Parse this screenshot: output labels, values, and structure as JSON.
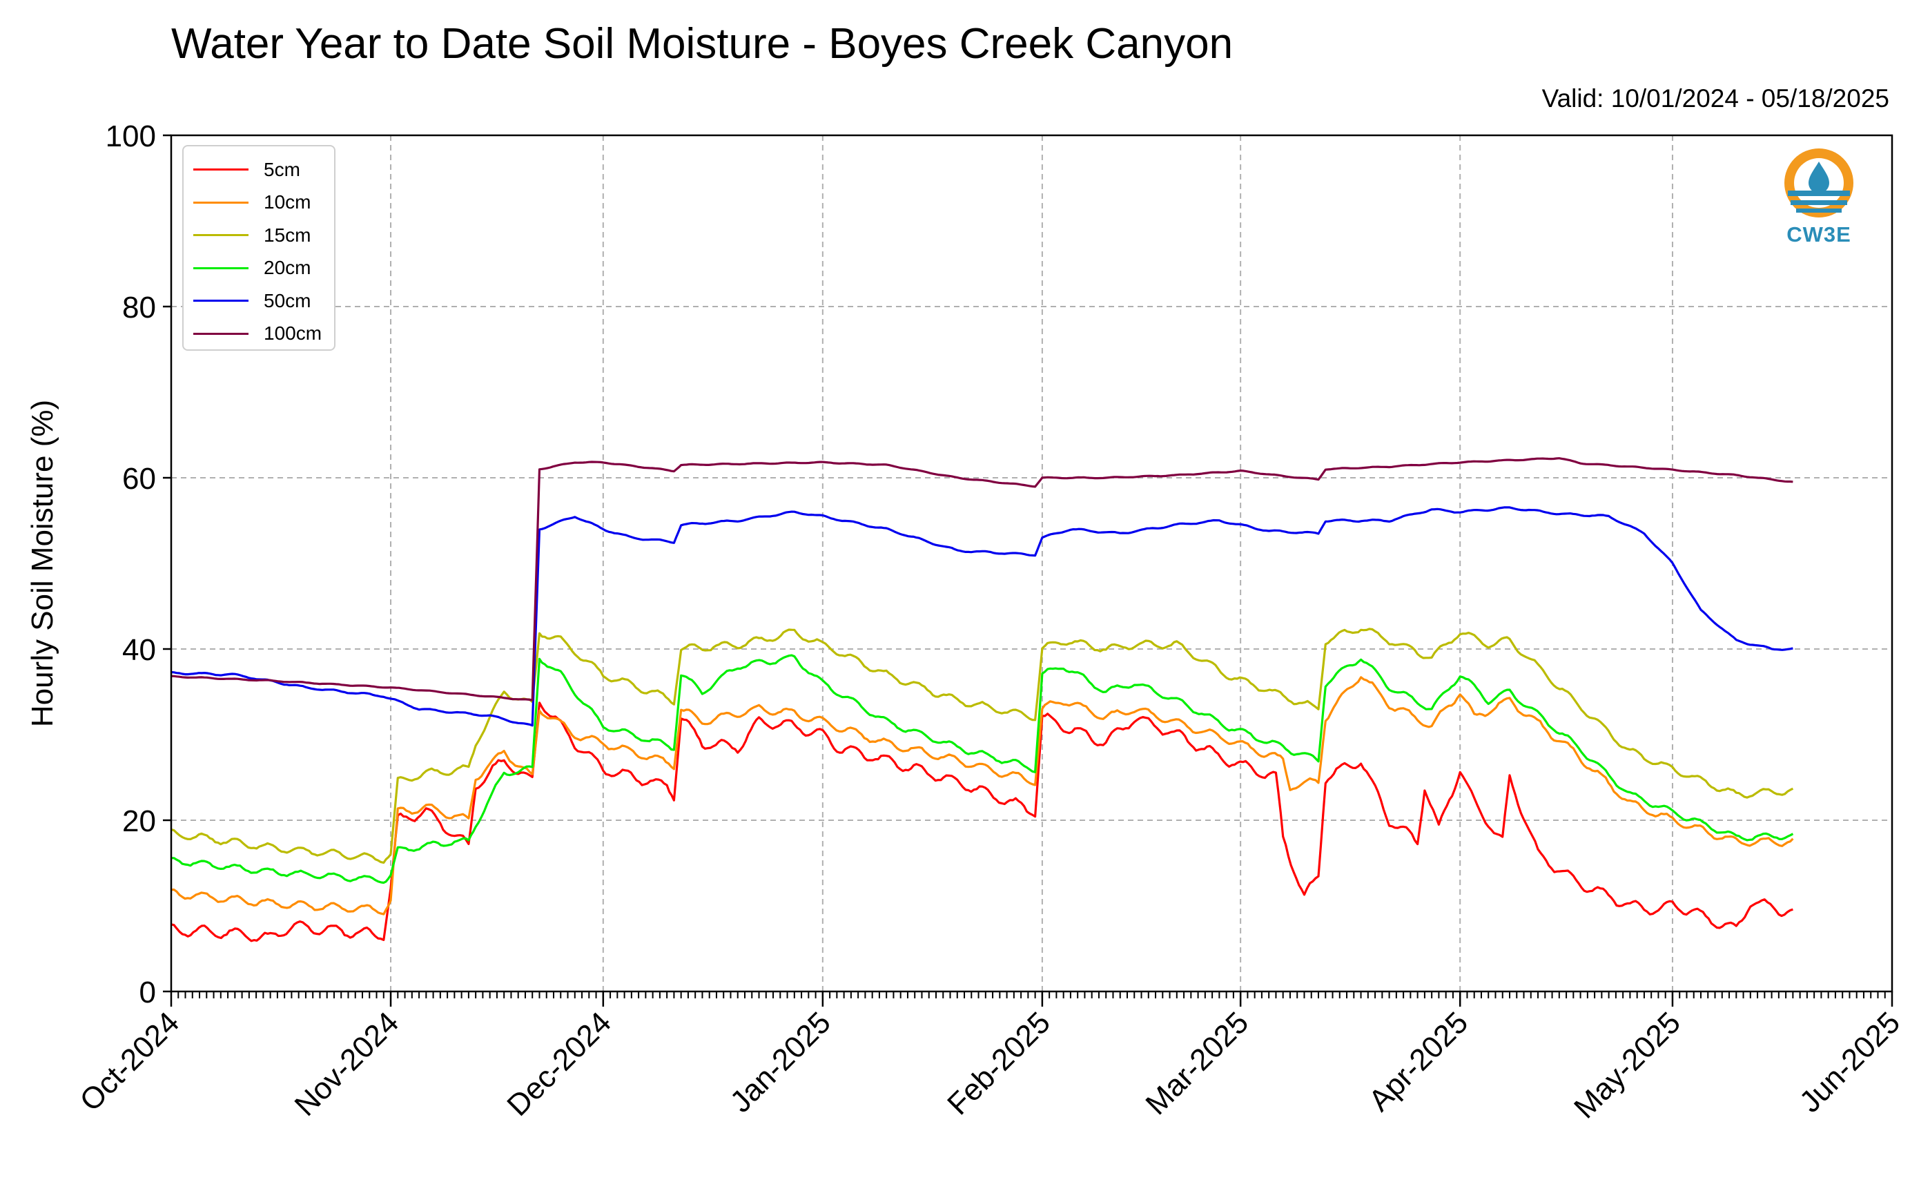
{
  "title": "Water Year to Date Soil Moisture - Boyes Creek Canyon",
  "valid": "Valid: 10/01/2024 - 05/18/2025",
  "logo": {
    "icon": "cw3e-droplet-logo",
    "text": "CW3E",
    "color": "#f39a1e",
    "accent": "#2a8db8"
  },
  "chart_data": {
    "type": "line",
    "ylabel": "Hourly Soil Moisture (%)",
    "xlabel": "",
    "ylim": [
      0,
      100
    ],
    "xlim": [
      "2024-10-01",
      "2025-06-01"
    ],
    "grid": true,
    "legend_position": "top-left",
    "yticks": [
      0,
      20,
      40,
      60,
      80,
      100
    ],
    "xticks": [
      {
        "date": "2024-10-01",
        "label": "Oct-2024"
      },
      {
        "date": "2024-11-01",
        "label": "Nov-2024"
      },
      {
        "date": "2024-12-01",
        "label": "Dec-2024"
      },
      {
        "date": "2025-01-01",
        "label": "Jan-2025"
      },
      {
        "date": "2025-02-01",
        "label": "Feb-2025"
      },
      {
        "date": "2025-03-01",
        "label": "Mar-2025"
      },
      {
        "date": "2025-04-01",
        "label": "Apr-2025"
      },
      {
        "date": "2025-05-01",
        "label": "May-2025"
      },
      {
        "date": "2025-06-01",
        "label": "Jun-2025"
      }
    ],
    "series": [
      {
        "name": "5cm",
        "color": "#ff0000",
        "points": [
          [
            "2024-10-01",
            7.2
          ],
          [
            "2024-10-10",
            6.8
          ],
          [
            "2024-10-15",
            6.2
          ],
          [
            "2024-10-18",
            7.6
          ],
          [
            "2024-10-31",
            6.6
          ],
          [
            "2024-11-01",
            12
          ],
          [
            "2024-11-02",
            20
          ],
          [
            "2024-11-06",
            21
          ],
          [
            "2024-11-12",
            17
          ],
          [
            "2024-11-13",
            24
          ],
          [
            "2024-11-17",
            27
          ],
          [
            "2024-11-21",
            24.5
          ],
          [
            "2024-11-22",
            34
          ],
          [
            "2024-11-25",
            31
          ],
          [
            "2024-11-27",
            29
          ],
          [
            "2024-12-01",
            26
          ],
          [
            "2024-12-10",
            24
          ],
          [
            "2024-12-11",
            23
          ],
          [
            "2024-12-12",
            32
          ],
          [
            "2024-12-15",
            29
          ],
          [
            "2024-12-20",
            28.5
          ],
          [
            "2024-12-23",
            31.5
          ],
          [
            "2024-12-28",
            31
          ],
          [
            "2025-01-01",
            30
          ],
          [
            "2025-01-03",
            28.5
          ],
          [
            "2025-01-10",
            27
          ],
          [
            "2025-01-20",
            24.5
          ],
          [
            "2025-01-31",
            21
          ],
          [
            "2025-02-01",
            32
          ],
          [
            "2025-02-04",
            31
          ],
          [
            "2025-02-10",
            29
          ],
          [
            "2025-02-14",
            32
          ],
          [
            "2025-02-20",
            30
          ],
          [
            "2025-02-27",
            27
          ],
          [
            "2025-03-06",
            25
          ],
          [
            "2025-03-07",
            18
          ],
          [
            "2025-03-10",
            11
          ],
          [
            "2025-03-12",
            13.5
          ],
          [
            "2025-03-13",
            25
          ],
          [
            "2025-03-18",
            27
          ],
          [
            "2025-03-22",
            20
          ],
          [
            "2025-03-26",
            17.5
          ],
          [
            "2025-03-27",
            24
          ],
          [
            "2025-03-29",
            19
          ],
          [
            "2025-04-01",
            26
          ],
          [
            "2025-04-03",
            22
          ],
          [
            "2025-04-07",
            17.5
          ],
          [
            "2025-04-08",
            25
          ],
          [
            "2025-04-12",
            16
          ],
          [
            "2025-04-17",
            13
          ],
          [
            "2025-04-25",
            10
          ],
          [
            "2025-04-29",
            9.5
          ],
          [
            "2025-05-01",
            10.2
          ],
          [
            "2025-05-10",
            7.2
          ],
          [
            "2025-05-12",
            10.5
          ],
          [
            "2025-05-18",
            9.2
          ]
        ]
      },
      {
        "name": "10cm",
        "color": "#ff8c00",
        "points": [
          [
            "2024-10-01",
            11.5
          ],
          [
            "2024-10-15",
            10.3
          ],
          [
            "2024-10-31",
            9.5
          ],
          [
            "2024-11-01",
            10.5
          ],
          [
            "2024-11-02",
            21
          ],
          [
            "2024-11-06",
            21.5
          ],
          [
            "2024-11-12",
            20
          ],
          [
            "2024-11-13",
            25
          ],
          [
            "2024-11-17",
            28
          ],
          [
            "2024-11-21",
            25
          ],
          [
            "2024-11-22",
            33
          ],
          [
            "2024-11-27",
            30
          ],
          [
            "2024-12-01",
            29
          ],
          [
            "2024-12-11",
            26.5
          ],
          [
            "2024-12-12",
            33
          ],
          [
            "2024-12-15",
            31.5
          ],
          [
            "2024-12-23",
            33
          ],
          [
            "2024-12-28",
            32.5
          ],
          [
            "2025-01-01",
            31.5
          ],
          [
            "2025-01-10",
            29
          ],
          [
            "2025-01-20",
            27
          ],
          [
            "2025-01-31",
            24.5
          ],
          [
            "2025-02-01",
            33
          ],
          [
            "2025-02-04",
            34
          ],
          [
            "2025-02-10",
            32
          ],
          [
            "2025-02-14",
            33
          ],
          [
            "2025-02-27",
            29.5
          ],
          [
            "2025-03-07",
            27
          ],
          [
            "2025-03-08",
            24
          ],
          [
            "2025-03-12",
            24.5
          ],
          [
            "2025-03-13",
            32
          ],
          [
            "2025-03-18",
            37
          ],
          [
            "2025-03-22",
            33.5
          ],
          [
            "2025-03-28",
            31
          ],
          [
            "2025-04-01",
            35
          ],
          [
            "2025-04-03",
            32
          ],
          [
            "2025-04-08",
            34
          ],
          [
            "2025-04-17",
            28
          ],
          [
            "2025-04-25",
            22
          ],
          [
            "2025-05-01",
            20
          ],
          [
            "2025-05-10",
            17.5
          ],
          [
            "2025-05-18",
            17.5
          ]
        ]
      },
      {
        "name": "15cm",
        "color": "#bbbb00",
        "points": [
          [
            "2024-10-01",
            18.5
          ],
          [
            "2024-10-15",
            16.8
          ],
          [
            "2024-10-31",
            15.5
          ],
          [
            "2024-11-01",
            16
          ],
          [
            "2024-11-02",
            24.5
          ],
          [
            "2024-11-06",
            25.5
          ],
          [
            "2024-11-12",
            26
          ],
          [
            "2024-11-13",
            29
          ],
          [
            "2024-11-17",
            35
          ],
          [
            "2024-11-21",
            33.5
          ],
          [
            "2024-11-22",
            42
          ],
          [
            "2024-11-25",
            41
          ],
          [
            "2024-12-01",
            37
          ],
          [
            "2024-12-11",
            34
          ],
          [
            "2024-12-12",
            40
          ],
          [
            "2024-12-20",
            40.5
          ],
          [
            "2024-12-23",
            41
          ],
          [
            "2024-12-28",
            42
          ],
          [
            "2025-01-01",
            40.5
          ],
          [
            "2025-01-10",
            37
          ],
          [
            "2025-01-20",
            34
          ],
          [
            "2025-01-31",
            32
          ],
          [
            "2025-02-01",
            40
          ],
          [
            "2025-02-04",
            41
          ],
          [
            "2025-02-10",
            40
          ],
          [
            "2025-02-14",
            40.5
          ],
          [
            "2025-02-20",
            40.5
          ],
          [
            "2025-02-27",
            37
          ],
          [
            "2025-03-07",
            34.5
          ],
          [
            "2025-03-12",
            33
          ],
          [
            "2025-03-13",
            41
          ],
          [
            "2025-03-18",
            42.5
          ],
          [
            "2025-03-22",
            41
          ],
          [
            "2025-03-28",
            39
          ],
          [
            "2025-04-01",
            42
          ],
          [
            "2025-04-05",
            40.5
          ],
          [
            "2025-04-08",
            41
          ],
          [
            "2025-04-17",
            34
          ],
          [
            "2025-04-25",
            28
          ],
          [
            "2025-05-01",
            26
          ],
          [
            "2025-05-10",
            23
          ],
          [
            "2025-05-18",
            23.5
          ]
        ]
      },
      {
        "name": "20cm",
        "color": "#00ee00",
        "points": [
          [
            "2024-10-01",
            15.3
          ],
          [
            "2024-10-15",
            14
          ],
          [
            "2024-10-31",
            13
          ],
          [
            "2024-11-01",
            13.5
          ],
          [
            "2024-11-02",
            16.5
          ],
          [
            "2024-11-10",
            17.5
          ],
          [
            "2024-11-12",
            17.5
          ],
          [
            "2024-11-13",
            19.5
          ],
          [
            "2024-11-17",
            25.5
          ],
          [
            "2024-11-21",
            26
          ],
          [
            "2024-11-22",
            39
          ],
          [
            "2024-11-25",
            37
          ],
          [
            "2024-12-01",
            31
          ],
          [
            "2024-12-11",
            28.5
          ],
          [
            "2024-12-12",
            37
          ],
          [
            "2024-12-15",
            35
          ],
          [
            "2024-12-20",
            38
          ],
          [
            "2024-12-28",
            39
          ],
          [
            "2025-01-01",
            36
          ],
          [
            "2025-01-10",
            31.5
          ],
          [
            "2025-01-20",
            28.5
          ],
          [
            "2025-01-31",
            26
          ],
          [
            "2025-02-01",
            37
          ],
          [
            "2025-02-04",
            38
          ],
          [
            "2025-02-10",
            35
          ],
          [
            "2025-02-14",
            36
          ],
          [
            "2025-02-20",
            34
          ],
          [
            "2025-02-27",
            31
          ],
          [
            "2025-03-07",
            28.5
          ],
          [
            "2025-03-12",
            27
          ],
          [
            "2025-03-13",
            36
          ],
          [
            "2025-03-18",
            39
          ],
          [
            "2025-03-22",
            35.5
          ],
          [
            "2025-03-28",
            33
          ],
          [
            "2025-04-01",
            37
          ],
          [
            "2025-04-05",
            34
          ],
          [
            "2025-04-08",
            35
          ],
          [
            "2025-04-17",
            29
          ],
          [
            "2025-04-25",
            23
          ],
          [
            "2025-05-01",
            21
          ],
          [
            "2025-05-10",
            18
          ],
          [
            "2025-05-18",
            18.2
          ]
        ]
      },
      {
        "name": "50cm",
        "color": "#0000ee",
        "points": [
          [
            "2024-10-01",
            37.2
          ],
          [
            "2024-10-10",
            37
          ],
          [
            "2024-10-20",
            35.5
          ],
          [
            "2024-10-31",
            34.5
          ],
          [
            "2024-11-05",
            33
          ],
          [
            "2024-11-15",
            32.2
          ],
          [
            "2024-11-21",
            31
          ],
          [
            "2024-11-22",
            54
          ],
          [
            "2024-11-27",
            55.5
          ],
          [
            "2024-12-01",
            54
          ],
          [
            "2024-12-05",
            53
          ],
          [
            "2024-12-11",
            52.5
          ],
          [
            "2024-12-12",
            54.5
          ],
          [
            "2024-12-20",
            55
          ],
          [
            "2024-12-28",
            56
          ],
          [
            "2025-01-01",
            55.5
          ],
          [
            "2025-01-10",
            54
          ],
          [
            "2025-01-20",
            51.5
          ],
          [
            "2025-01-31",
            51
          ],
          [
            "2025-02-01",
            53
          ],
          [
            "2025-02-05",
            54
          ],
          [
            "2025-02-12",
            53.5
          ],
          [
            "2025-02-20",
            54.5
          ],
          [
            "2025-02-26",
            55
          ],
          [
            "2025-03-05",
            53.8
          ],
          [
            "2025-03-12",
            53.5
          ],
          [
            "2025-03-13",
            55
          ],
          [
            "2025-03-22",
            55
          ],
          [
            "2025-03-28",
            56.3
          ],
          [
            "2025-04-01",
            56
          ],
          [
            "2025-04-08",
            56.5
          ],
          [
            "2025-04-15",
            55.8
          ],
          [
            "2025-04-22",
            55.5
          ],
          [
            "2025-04-27",
            53.5
          ],
          [
            "2025-05-01",
            50
          ],
          [
            "2025-05-05",
            44.5
          ],
          [
            "2025-05-10",
            41
          ],
          [
            "2025-05-15",
            40
          ],
          [
            "2025-05-18",
            40
          ]
        ]
      },
      {
        "name": "100cm",
        "color": "#800040",
        "points": [
          [
            "2024-10-01",
            36.8
          ],
          [
            "2024-10-15",
            36.3
          ],
          [
            "2024-11-01",
            35.5
          ],
          [
            "2024-11-21",
            34
          ],
          [
            "2024-11-22",
            61
          ],
          [
            "2024-11-27",
            61.8
          ],
          [
            "2024-12-01",
            61.8
          ],
          [
            "2024-12-11",
            60.8
          ],
          [
            "2024-12-12",
            61.5
          ],
          [
            "2025-01-01",
            61.8
          ],
          [
            "2025-01-10",
            61.5
          ],
          [
            "2025-01-20",
            60
          ],
          [
            "2025-01-31",
            59
          ],
          [
            "2025-02-01",
            60
          ],
          [
            "2025-02-10",
            60
          ],
          [
            "2025-02-20",
            60.3
          ],
          [
            "2025-03-01",
            60.8
          ],
          [
            "2025-03-07",
            60.2
          ],
          [
            "2025-03-12",
            59.8
          ],
          [
            "2025-03-13",
            61
          ],
          [
            "2025-03-22",
            61.3
          ],
          [
            "2025-04-01",
            61.8
          ],
          [
            "2025-04-15",
            62.3
          ],
          [
            "2025-04-18",
            61.7
          ],
          [
            "2025-04-30",
            61
          ],
          [
            "2025-05-10",
            60.3
          ],
          [
            "2025-05-18",
            59.5
          ]
        ]
      }
    ]
  }
}
